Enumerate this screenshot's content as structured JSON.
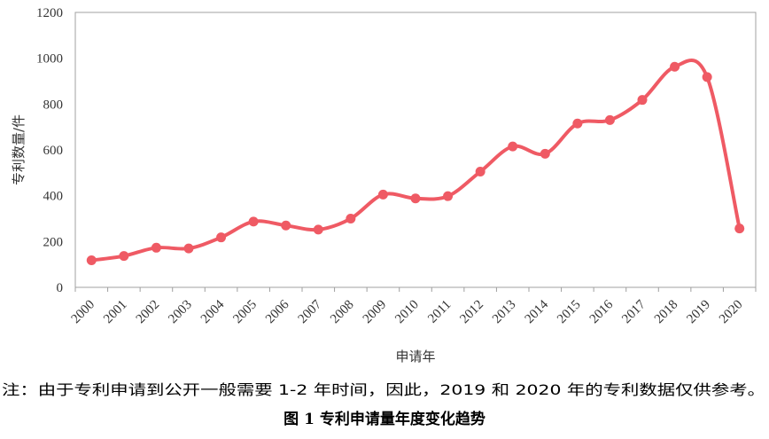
{
  "chart_data": {
    "type": "line",
    "categories": [
      "2000",
      "2001",
      "2002",
      "2003",
      "2004",
      "2005",
      "2006",
      "2007",
      "2008",
      "2009",
      "2010",
      "2011",
      "2012",
      "2013",
      "2014",
      "2015",
      "2016",
      "2017",
      "2018",
      "2019",
      "2020"
    ],
    "series": [
      {
        "values": [
          118,
          137,
          173,
          170,
          218,
          287,
          270,
          252,
          300,
          405,
          388,
          398,
          505,
          615,
          583,
          715,
          730,
          818,
          963,
          918,
          257
        ]
      }
    ],
    "title": "",
    "xlabel": "申请年",
    "ylabel": "专利数量/件",
    "ylim": [
      0,
      1200
    ],
    "yticks": [
      "0",
      "200",
      "400",
      "600",
      "800",
      "1000",
      "1200"
    ],
    "grid": false,
    "legend": "none",
    "line_style": "smooth",
    "marker": "circle"
  },
  "note": "注：由于专利申请到公开一般需要 1-2 年时间，因此，2019 和 2020 年的专利数据仅供参考。",
  "caption": "图 1  专利申请量年度变化趋势",
  "colors": {
    "series": "#ef5a64",
    "axis": "#a0a0a0",
    "text": "#333333"
  }
}
